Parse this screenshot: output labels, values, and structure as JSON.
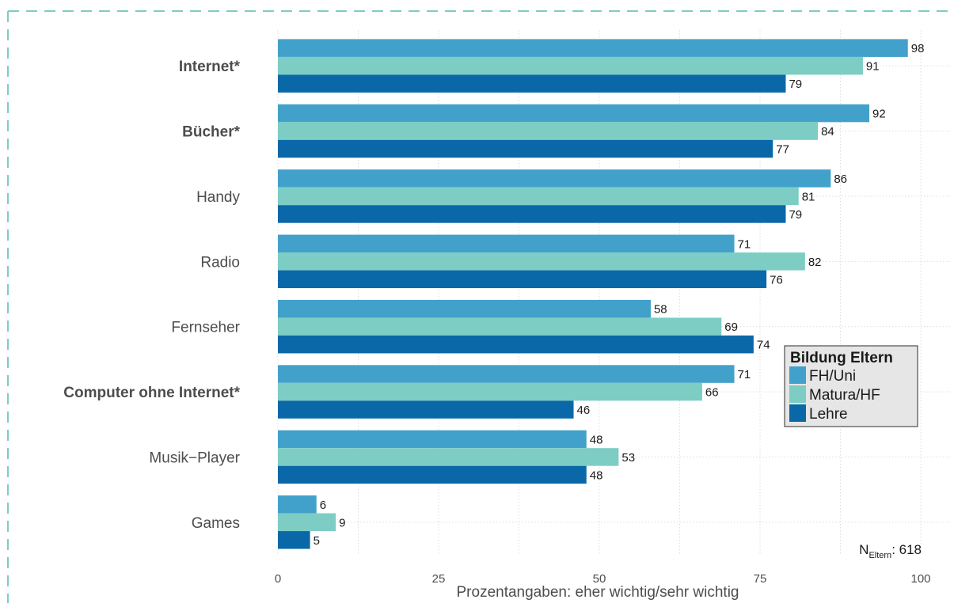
{
  "chart_data": {
    "type": "bar",
    "orientation": "horizontal",
    "categories": [
      "Internet*",
      "Bücher*",
      "Handy",
      "Radio",
      "Fernseher",
      "Computer ohne Internet*",
      "Musik−Player",
      "Games"
    ],
    "bold_categories": [
      "Internet*",
      "Bücher*",
      "Computer ohne Internet*"
    ],
    "series": [
      {
        "name": "FH/Uni",
        "color": "#42a1cb",
        "values": [
          98,
          92,
          86,
          71,
          58,
          71,
          48,
          6
        ]
      },
      {
        "name": "Matura/HF",
        "color": "#7dcdc4",
        "values": [
          91,
          84,
          81,
          82,
          69,
          66,
          53,
          9
        ]
      },
      {
        "name": "Lehre",
        "color": "#0b68a8",
        "values": [
          79,
          77,
          79,
          76,
          74,
          46,
          48,
          5
        ]
      }
    ],
    "xlabel": "Prozentangaben: eher wichtig/sehr wichtig",
    "ylabel": "",
    "xlim": [
      0,
      100
    ],
    "xticks": [
      0,
      25,
      50,
      75,
      100
    ],
    "grid": true,
    "legend": {
      "title": "Bildung Eltern",
      "position": "right"
    },
    "annotation": {
      "main": "N",
      "sub": "Eltern",
      "suffix": ": 618"
    }
  }
}
